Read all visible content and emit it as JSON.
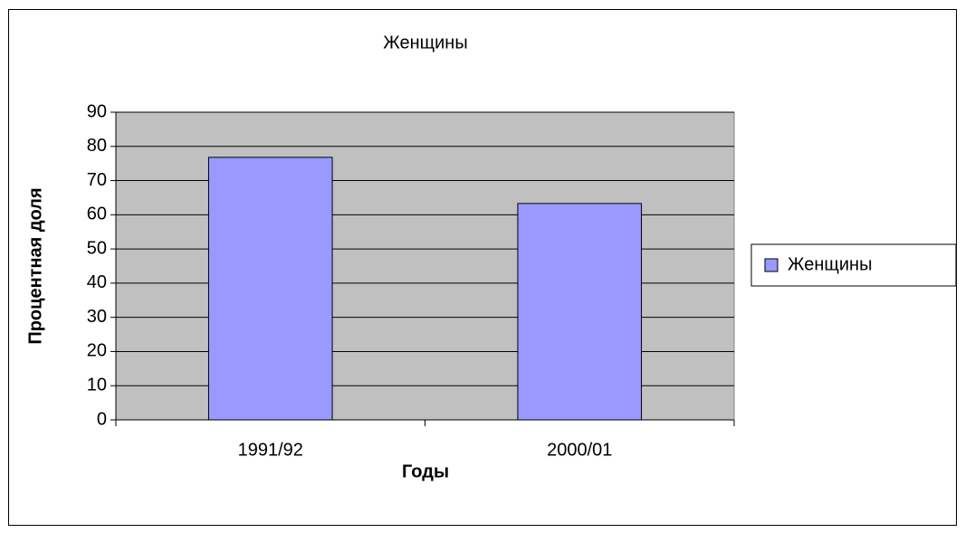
{
  "chart_data": {
    "type": "bar",
    "title": "Женщины",
    "categories": [
      "1991/92",
      "2000/01"
    ],
    "series": [
      {
        "name": "Женщины",
        "color": "#9999ff",
        "values": [
          76.8,
          63.3
        ]
      }
    ],
    "xlabel": "Годы",
    "ylabel": "Процентная доля",
    "ylim": [
      0,
      90
    ],
    "yticks": [
      0,
      10,
      20,
      30,
      40,
      50,
      60,
      70,
      80,
      90
    ],
    "grid": true,
    "legend": "right"
  }
}
